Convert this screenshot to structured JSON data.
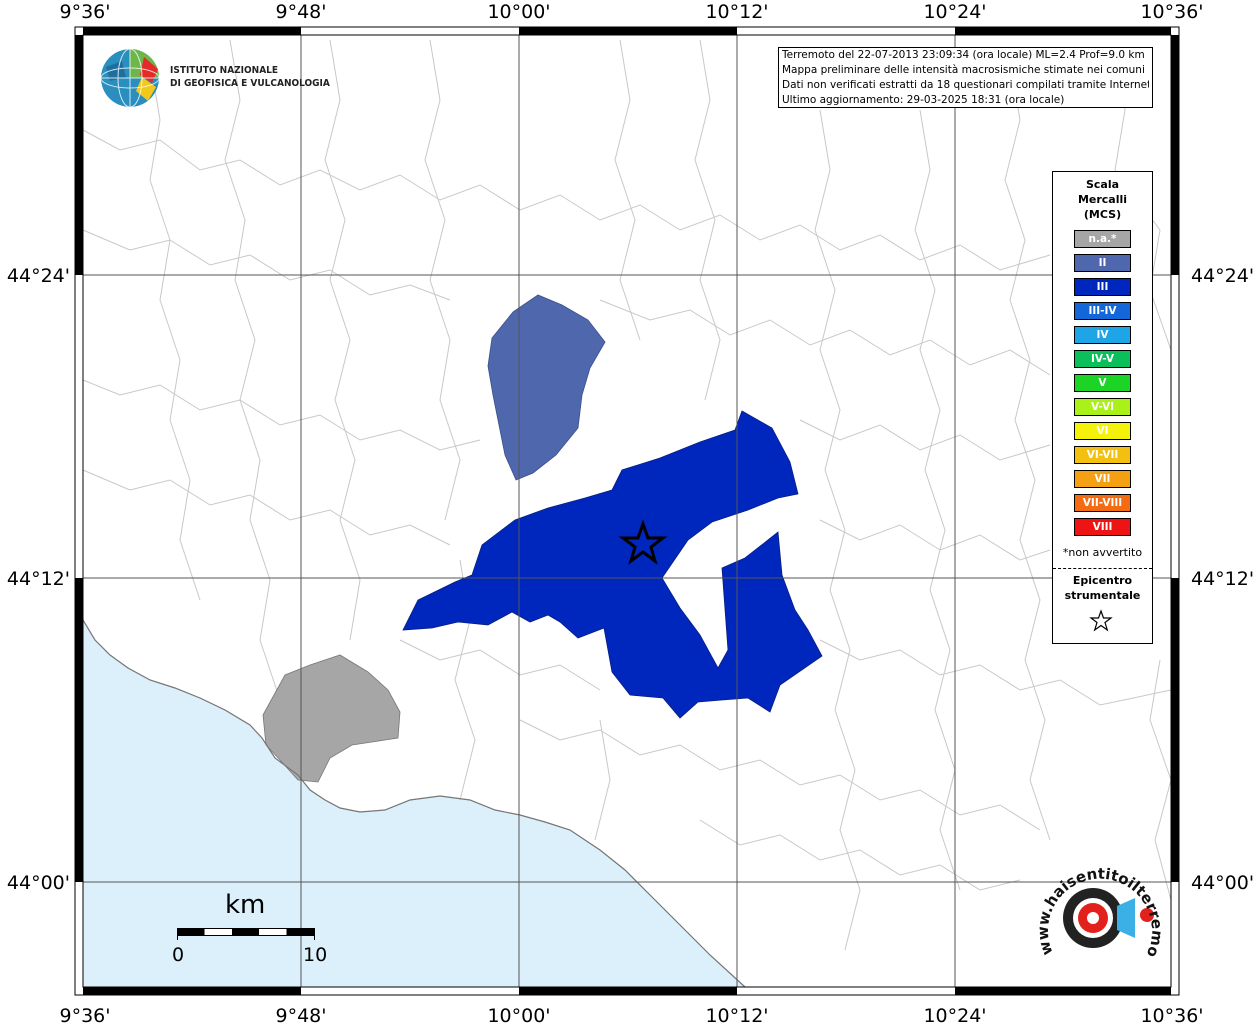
{
  "map": {
    "lon_labels_top": [
      "9°36'",
      "9°48'",
      "10°00'",
      "10°12'",
      "10°24'",
      "10°36'"
    ],
    "lon_labels_bottom": [
      "9°36'",
      "9°48'",
      "10°00'",
      "10°12'",
      "10°24'",
      "10°36'"
    ],
    "lat_labels_left": [
      "44°24'",
      "44°12'",
      "44°00'"
    ],
    "lat_labels_right": [
      "44°24'",
      "44°12'",
      "44°00'"
    ],
    "sea_color": "#dcf0fb",
    "colors": {
      "na": "#a6a6a6",
      "II": "#4f67ad",
      "III": "#0027bd"
    }
  },
  "info": {
    "line1": "Terremoto del 22-07-2013 23:09:34 (ora locale) ML=2.4 Prof=9.0 km",
    "line2": "Mappa preliminare delle intensità macrosismiche stimate nei comuni",
    "line3": "Dati non verificati estratti da 18 questionari compilati tramite Internet.",
    "line4": "Ultimo aggiornamento: 29-03-2025 18:31 (ora locale)"
  },
  "logo": {
    "line1": "ISTITUTO NAZIONALE",
    "line2": "DI GEOFISICA E VULCANOLOGIA"
  },
  "legend": {
    "title1": "Scala",
    "title2": "Mercalli",
    "title3": "(MCS)",
    "items": [
      {
        "label": "n.a.*",
        "color": "#a6a6a6"
      },
      {
        "label": "II",
        "color": "#4f67ad"
      },
      {
        "label": "III",
        "color": "#0027bd"
      },
      {
        "label": "III-IV",
        "color": "#1367d8"
      },
      {
        "label": "IV",
        "color": "#1ea5e8"
      },
      {
        "label": "IV-V",
        "color": "#0bbf5a"
      },
      {
        "label": "V",
        "color": "#1bd425"
      },
      {
        "label": "V-VI",
        "color": "#aaf019"
      },
      {
        "label": "VI",
        "color": "#f4f20a"
      },
      {
        "label": "VI-VII",
        "color": "#f3c00f"
      },
      {
        "label": "VII",
        "color": "#f59f12"
      },
      {
        "label": "VII-VIII",
        "color": "#f46b12"
      },
      {
        "label": "VIII",
        "color": "#ee1414"
      }
    ],
    "note": "*non avvertito",
    "epi1": "Epicentro",
    "epi2": "strumentale"
  },
  "scalebar": {
    "unit": "km",
    "start": "0",
    "end": "10"
  },
  "watermark": {
    "text": "www.haisentitoilterremoto.it"
  }
}
